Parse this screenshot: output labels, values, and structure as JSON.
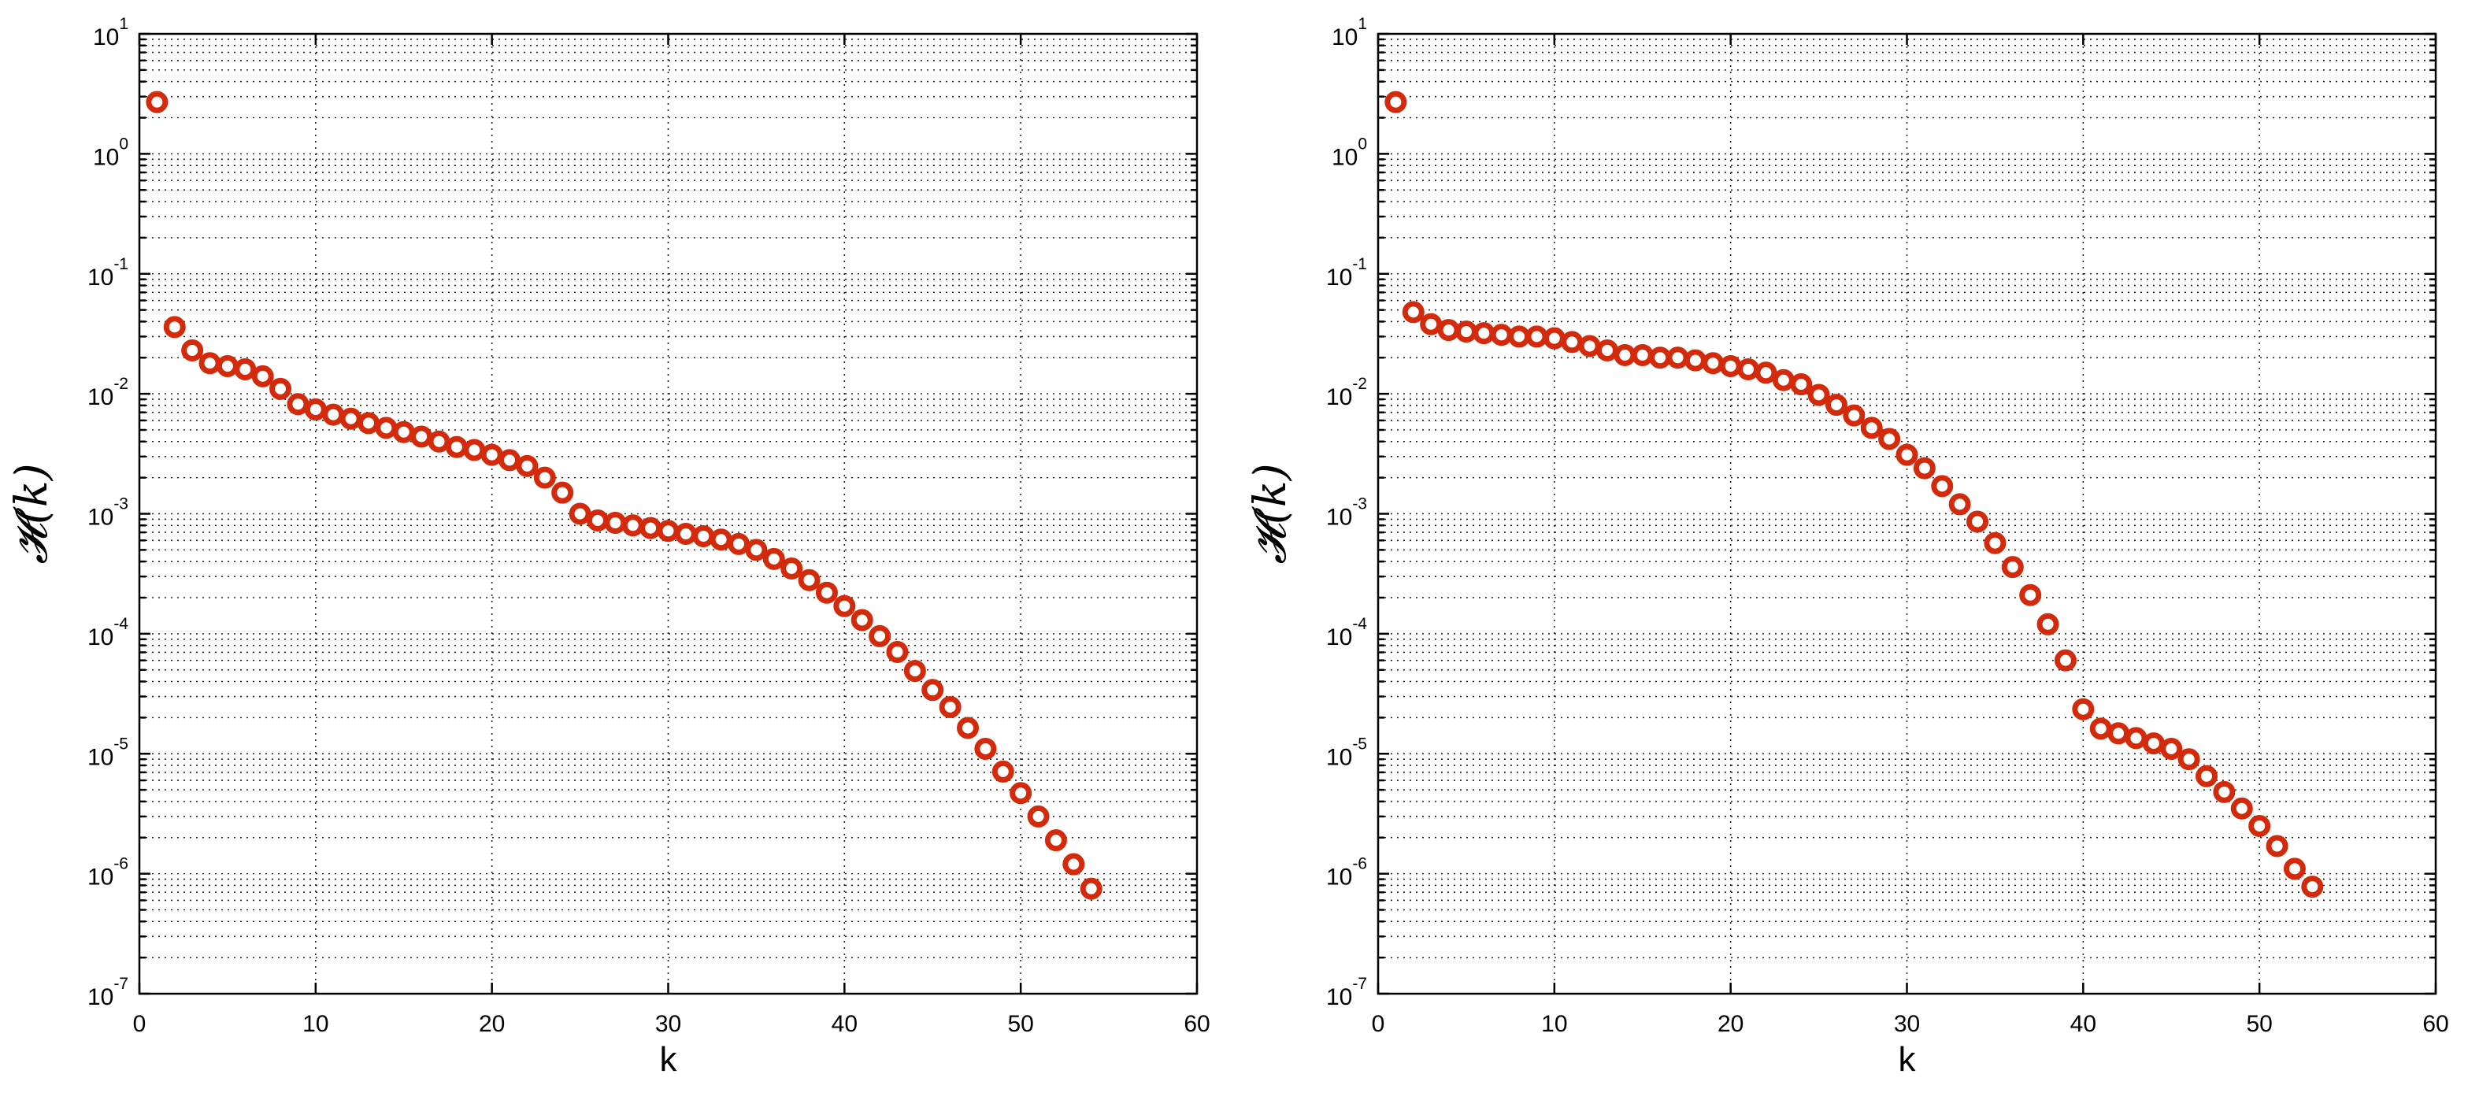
{
  "chart_data": [
    {
      "type": "scatter",
      "xlabel": "k",
      "ylabel": "𝓗(k)",
      "xlim": [
        0,
        60
      ],
      "ylim": [
        1e-07,
        10
      ],
      "yscale": "log",
      "grid": true,
      "x_ticks": [
        "0",
        "10",
        "20",
        "30",
        "40",
        "50",
        "60"
      ],
      "y_ticks": [
        {
          "base": "10",
          "exp": "1"
        },
        {
          "base": "10",
          "exp": "0"
        },
        {
          "base": "10",
          "exp": "-1"
        },
        {
          "base": "10",
          "exp": "-2"
        },
        {
          "base": "10",
          "exp": "-3"
        },
        {
          "base": "10",
          "exp": "-4"
        },
        {
          "base": "10",
          "exp": "-5"
        },
        {
          "base": "10",
          "exp": "-6"
        },
        {
          "base": "10",
          "exp": "-7"
        }
      ],
      "marker_color": "#d42a0c",
      "series": [
        {
          "x": [
            1,
            2,
            3,
            4,
            5,
            6,
            7,
            8,
            9,
            10,
            11,
            12,
            13,
            14,
            15,
            16,
            17,
            18,
            19,
            20,
            21,
            22,
            23,
            24,
            25,
            26,
            27,
            28,
            29,
            30,
            31,
            32,
            33,
            34,
            35,
            36,
            37,
            38,
            39,
            40,
            41,
            42,
            43,
            44,
            45,
            46,
            47,
            48,
            49,
            50,
            51,
            52,
            53,
            54
          ],
          "y": [
            2.7,
            0.036,
            0.023,
            0.018,
            0.017,
            0.016,
            0.014,
            0.011,
            0.0082,
            0.0074,
            0.0067,
            0.0062,
            0.0057,
            0.0052,
            0.0048,
            0.0044,
            0.004,
            0.0036,
            0.0034,
            0.0031,
            0.0028,
            0.0025,
            0.002,
            0.0015,
            0.001,
            0.00088,
            0.00084,
            0.0008,
            0.00076,
            0.00072,
            0.00068,
            0.00065,
            0.00061,
            0.00056,
            0.0005,
            0.00042,
            0.00035,
            0.00028,
            0.00022,
            0.00017,
            0.00013,
            9.55e-05,
            7.05e-05,
            4.9e-05,
            3.4e-05,
            2.45e-05,
            1.64e-05,
            1.1e-05,
            7.1e-06,
            4.7e-06,
            3e-06,
            1.9e-06,
            1.2e-06,
            7.5e-07
          ]
        }
      ]
    },
    {
      "type": "scatter",
      "xlabel": "k",
      "ylabel": "𝓗(k)",
      "xlim": [
        0,
        60
      ],
      "ylim": [
        1e-07,
        10
      ],
      "yscale": "log",
      "grid": true,
      "x_ticks": [
        "0",
        "10",
        "20",
        "30",
        "40",
        "50",
        "60"
      ],
      "y_ticks": [
        {
          "base": "10",
          "exp": "1"
        },
        {
          "base": "10",
          "exp": "0"
        },
        {
          "base": "10",
          "exp": "-1"
        },
        {
          "base": "10",
          "exp": "-2"
        },
        {
          "base": "10",
          "exp": "-3"
        },
        {
          "base": "10",
          "exp": "-4"
        },
        {
          "base": "10",
          "exp": "-5"
        },
        {
          "base": "10",
          "exp": "-6"
        },
        {
          "base": "10",
          "exp": "-7"
        }
      ],
      "marker_color": "#d42a0c",
      "series": [
        {
          "x": [
            1,
            2,
            3,
            4,
            5,
            6,
            7,
            8,
            9,
            10,
            11,
            12,
            13,
            14,
            15,
            16,
            17,
            18,
            19,
            20,
            21,
            22,
            23,
            24,
            25,
            26,
            27,
            28,
            29,
            30,
            31,
            32,
            33,
            34,
            35,
            36,
            37,
            38,
            39,
            40,
            41,
            42,
            43,
            44,
            45,
            46,
            47,
            48,
            49,
            50,
            51,
            52,
            53
          ],
          "y": [
            2.7,
            0.048,
            0.038,
            0.034,
            0.033,
            0.032,
            0.031,
            0.03,
            0.03,
            0.029,
            0.027,
            0.025,
            0.023,
            0.021,
            0.021,
            0.02,
            0.02,
            0.019,
            0.018,
            0.017,
            0.016,
            0.015,
            0.013,
            0.012,
            0.0098,
            0.0081,
            0.0066,
            0.0052,
            0.0042,
            0.0031,
            0.0024,
            0.0017,
            0.0012,
            0.00086,
            0.00057,
            0.00036,
            0.00021,
            0.00012,
            6e-05,
            2.35e-05,
            1.62e-05,
            1.48e-05,
            1.35e-05,
            1.22e-05,
            1.1e-05,
            9e-06,
            6.5e-06,
            4.8e-06,
            3.5e-06,
            2.5e-06,
            1.7e-06,
            1.1e-06,
            7.8e-07
          ]
        }
      ]
    }
  ]
}
